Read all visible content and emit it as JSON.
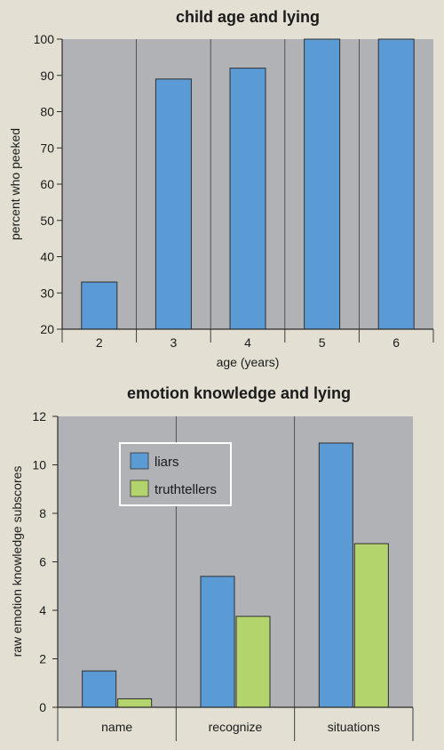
{
  "chart_data": [
    {
      "type": "bar",
      "title": "child age and lying",
      "xlabel": "age (years)",
      "ylabel": "percent who peeked",
      "categories": [
        "2",
        "3",
        "4",
        "5",
        "6"
      ],
      "values": [
        33,
        89,
        92,
        100,
        100
      ],
      "ylim": [
        20,
        100
      ],
      "yticks": [
        20,
        30,
        40,
        50,
        60,
        70,
        80,
        90,
        100
      ],
      "grid": "vertical separators between categories",
      "colors": {
        "bar": "#5b9bd5",
        "plot_bg": "#b1b2b5"
      }
    },
    {
      "type": "bar",
      "title": "emotion knowledge and lying",
      "xlabel": "",
      "ylabel": "raw emotion knowledge subscores",
      "categories": [
        "name",
        "recognize",
        "situations"
      ],
      "series": [
        {
          "name": "liars",
          "values": [
            1.5,
            5.4,
            10.9
          ],
          "color": "#5b9bd5"
        },
        {
          "name": "truthtellers",
          "values": [
            0.35,
            3.75,
            6.75
          ],
          "color": "#b3d46d"
        }
      ],
      "ylim": [
        0,
        12
      ],
      "yticks": [
        0,
        2,
        4,
        6,
        8,
        10,
        12
      ],
      "legend": "top-left",
      "grid": "vertical separators between categories",
      "colors": {
        "plot_bg": "#b1b2b5"
      }
    }
  ]
}
